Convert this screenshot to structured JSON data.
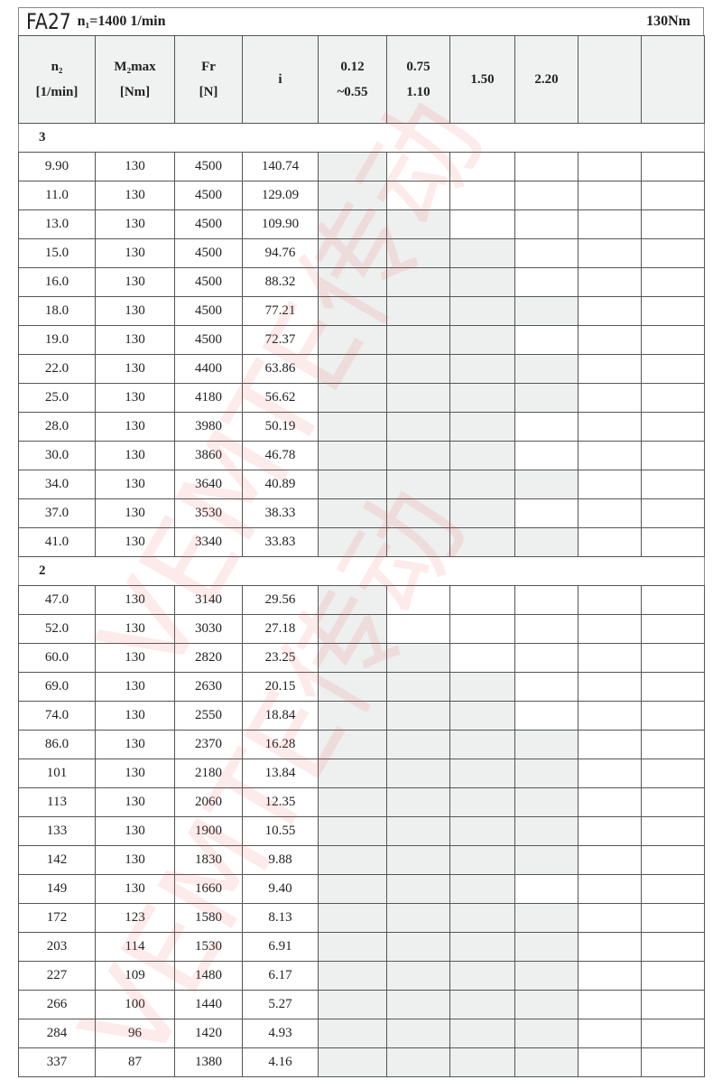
{
  "title": {
    "model": "FA27",
    "speed": "n₁=1400 1/min",
    "torque": "130Nm"
  },
  "headers": [
    [
      "n₂",
      "[1/min]"
    ],
    [
      "M₂max",
      "[Nm]"
    ],
    [
      "Fr",
      "[N]"
    ],
    [
      "i",
      ""
    ],
    [
      "0.12",
      "~0.55"
    ],
    [
      "0.75",
      "1.10"
    ],
    [
      "1.50",
      ""
    ],
    [
      "2.20",
      ""
    ],
    [
      "",
      ""
    ],
    [
      "",
      ""
    ]
  ],
  "watermark": "VEMTE传动",
  "shade_color": "#eef0f0",
  "sections": [
    {
      "label": "3",
      "rows": [
        [
          "9.90",
          "130",
          "4500",
          "140.74",
          1
        ],
        [
          "11.0",
          "130",
          "4500",
          "129.09",
          1
        ],
        [
          "13.0",
          "130",
          "4500",
          "109.90",
          2
        ],
        [
          "15.0",
          "130",
          "4500",
          "94.76",
          3
        ],
        [
          "16.0",
          "130",
          "4500",
          "88.32",
          3
        ],
        [
          "18.0",
          "130",
          "4500",
          "77.21",
          4
        ],
        [
          "19.0",
          "130",
          "4500",
          "72.37",
          3
        ],
        [
          "22.0",
          "130",
          "4400",
          "63.86",
          4
        ],
        [
          "25.0",
          "130",
          "4180",
          "56.62",
          4
        ],
        [
          "28.0",
          "130",
          "3980",
          "50.19",
          3
        ],
        [
          "30.0",
          "130",
          "3860",
          "46.78",
          3
        ],
        [
          "34.0",
          "130",
          "3640",
          "40.89",
          4
        ],
        [
          "37.0",
          "130",
          "3530",
          "38.33",
          3
        ],
        [
          "41.0",
          "130",
          "3340",
          "33.83",
          4
        ]
      ]
    },
    {
      "label": "2",
      "rows": [
        [
          "47.0",
          "130",
          "3140",
          "29.56",
          1
        ],
        [
          "52.0",
          "130",
          "3030",
          "27.18",
          1
        ],
        [
          "60.0",
          "130",
          "2820",
          "23.25",
          2
        ],
        [
          "69.0",
          "130",
          "2630",
          "20.15",
          3
        ],
        [
          "74.0",
          "130",
          "2550",
          "18.84",
          3
        ],
        [
          "86.0",
          "130",
          "2370",
          "16.28",
          4
        ],
        [
          "101",
          "130",
          "2180",
          "13.84",
          4
        ],
        [
          "113",
          "130",
          "2060",
          "12.35",
          4
        ],
        [
          "133",
          "130",
          "1900",
          "10.55",
          4
        ],
        [
          "142",
          "130",
          "1830",
          "9.88",
          4
        ],
        [
          "149",
          "130",
          "1660",
          "9.40",
          3
        ],
        [
          "172",
          "123",
          "1580",
          "8.13",
          4
        ],
        [
          "203",
          "114",
          "1530",
          "6.91",
          4
        ],
        [
          "227",
          "109",
          "1480",
          "6.17",
          4
        ],
        [
          "266",
          "100",
          "1440",
          "5.27",
          4
        ],
        [
          "284",
          "96",
          "1420",
          "4.93",
          4
        ],
        [
          "337",
          "87",
          "1380",
          "4.16",
          4
        ]
      ]
    }
  ]
}
